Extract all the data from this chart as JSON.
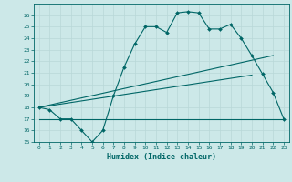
{
  "title": "",
  "xlabel": "Humidex (Indice chaleur)",
  "ylabel": "",
  "xlim": [
    -0.5,
    23.5
  ],
  "ylim": [
    15,
    27
  ],
  "yticks": [
    15,
    16,
    17,
    18,
    19,
    20,
    21,
    22,
    23,
    24,
    25,
    26
  ],
  "xticks": [
    0,
    1,
    2,
    3,
    4,
    5,
    6,
    7,
    8,
    9,
    10,
    11,
    12,
    13,
    14,
    15,
    16,
    17,
    18,
    19,
    20,
    21,
    22,
    23
  ],
  "bg_color": "#cce8e8",
  "grid_color": "#aacccc",
  "line_color": "#006666",
  "lines": [
    {
      "x": [
        0,
        1,
        2,
        3,
        4,
        5,
        6,
        7,
        8,
        9,
        10,
        11,
        12,
        13,
        14,
        15,
        16,
        17,
        18,
        19,
        20,
        21,
        22,
        23
      ],
      "y": [
        18,
        17.8,
        17,
        17,
        16,
        15,
        16,
        19,
        21.5,
        23.5,
        25,
        25,
        24.5,
        26.2,
        26.3,
        26.2,
        24.8,
        24.8,
        25.2,
        24.0,
        22.5,
        20.9,
        19.3,
        17
      ],
      "marker": true
    },
    {
      "x": [
        0,
        23
      ],
      "y": [
        17,
        17
      ],
      "marker": false
    },
    {
      "x": [
        0,
        20
      ],
      "y": [
        18,
        20.8
      ],
      "marker": false
    },
    {
      "x": [
        0,
        22
      ],
      "y": [
        18,
        22.5
      ],
      "marker": false
    }
  ]
}
